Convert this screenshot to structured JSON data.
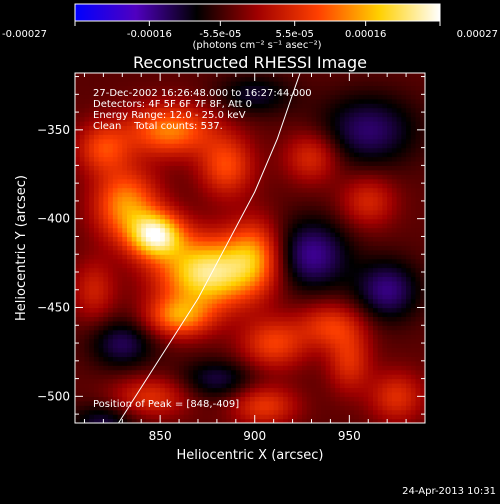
{
  "chart_data": {
    "type": "heatmap",
    "title": "Reconstructed RHESSI Image",
    "xlabel": "Heliocentric X (arcsec)",
    "ylabel": "Heliocentric Y (arcsec)",
    "xlim": [
      805,
      990
    ],
    "ylim": [
      -515,
      -318
    ],
    "x_ticks": [
      850,
      900,
      950
    ],
    "y_ticks": [
      -350,
      -400,
      -450,
      -500
    ],
    "colorbar": {
      "min": -0.00027,
      "max": 0.00027,
      "ticks": [
        "-0.00027",
        "-0.00016",
        "-5.5e-05",
        "5.5e-05",
        "0.00016",
        "0.00027"
      ],
      "tick_values": [
        -0.00027,
        -0.00016,
        -5.5e-05,
        5.5e-05,
        0.00016,
        0.00027
      ],
      "unit_label": "(photons cm⁻² s⁻¹ asec⁻²)",
      "colors": [
        "#0000ff",
        "#5000c0",
        "#000000",
        "#a00000",
        "#ff4000",
        "#ffd000",
        "#ffffff"
      ]
    },
    "info_lines": [
      "27-Dec-2002 16:26:48.000 to 16:27:44.000",
      "Detectors: 4F 5F 6F 7F 8F, Att 0",
      "Energy Range: 12.0 - 25.0 keV",
      "Clean    Total counts: 537."
    ],
    "peak_text": "Position of Peak = [848,-409]",
    "limb_curve": [
      [
        828,
        -515
      ],
      [
        840,
        -495
      ],
      [
        855,
        -470
      ],
      [
        870,
        -445
      ],
      [
        885,
        -415
      ],
      [
        900,
        -385
      ],
      [
        912,
        -355
      ],
      [
        920,
        -330
      ],
      [
        924,
        -318
      ]
    ],
    "emission_blobs": [
      {
        "x": 875,
        "y": -430,
        "sx": 18,
        "sy": 14,
        "amp": 0.00027
      },
      {
        "x": 848,
        "y": -409,
        "sx": 10,
        "sy": 9,
        "amp": 0.00026
      },
      {
        "x": 832,
        "y": -392,
        "sx": 12,
        "sy": 14,
        "amp": 0.00018
      },
      {
        "x": 855,
        "y": -350,
        "sx": 16,
        "sy": 10,
        "amp": 0.00017
      },
      {
        "x": 885,
        "y": -370,
        "sx": 10,
        "sy": 12,
        "amp": 0.00013
      },
      {
        "x": 820,
        "y": -360,
        "sx": 10,
        "sy": 10,
        "amp": 0.00012
      },
      {
        "x": 900,
        "y": -420,
        "sx": 10,
        "sy": 14,
        "amp": 0.00014
      },
      {
        "x": 860,
        "y": -455,
        "sx": 12,
        "sy": 8,
        "amp": 0.00016
      },
      {
        "x": 910,
        "y": -470,
        "sx": 12,
        "sy": 10,
        "amp": 0.00012
      },
      {
        "x": 940,
        "y": -460,
        "sx": 12,
        "sy": 9,
        "amp": 0.00011
      },
      {
        "x": 845,
        "y": -500,
        "sx": 14,
        "sy": 8,
        "amp": 0.0001
      },
      {
        "x": 905,
        "y": -505,
        "sx": 12,
        "sy": 8,
        "amp": 0.00011
      },
      {
        "x": 950,
        "y": -480,
        "sx": 8,
        "sy": 12,
        "amp": 0.0001
      },
      {
        "x": 975,
        "y": -500,
        "sx": 10,
        "sy": 10,
        "amp": 0.0001
      },
      {
        "x": 960,
        "y": -390,
        "sx": 10,
        "sy": 10,
        "amp": 9e-05
      },
      {
        "x": 930,
        "y": -365,
        "sx": 10,
        "sy": 10,
        "amp": 0.0001
      },
      {
        "x": 815,
        "y": -440,
        "sx": 8,
        "sy": 12,
        "amp": 8e-05
      },
      {
        "x": 930,
        "y": -420,
        "sx": 14,
        "sy": 14,
        "amp": -0.00012
      },
      {
        "x": 960,
        "y": -350,
        "sx": 18,
        "sy": 14,
        "amp": -0.0001
      },
      {
        "x": 970,
        "y": -440,
        "sx": 12,
        "sy": 12,
        "amp": -0.00011
      },
      {
        "x": 830,
        "y": -470,
        "sx": 12,
        "sy": 10,
        "amp": -9e-05
      },
      {
        "x": 880,
        "y": -490,
        "sx": 14,
        "sy": 8,
        "amp": -8e-05
      },
      {
        "x": 900,
        "y": -330,
        "sx": 14,
        "sy": 8,
        "amp": -7e-05
      },
      {
        "x": 820,
        "y": -515,
        "sx": 12,
        "sy": 8,
        "amp": -8e-05
      }
    ]
  },
  "footer": {
    "date": "24-Apr-2013 10:31"
  }
}
